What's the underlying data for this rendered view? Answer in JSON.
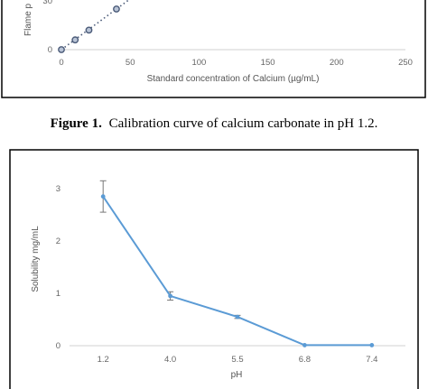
{
  "chart_data": [
    {
      "type": "scatter",
      "xlabel": "Standard concentration of Calcium (µg/mL)",
      "ylabel": "Flame p",
      "x_ticks": [
        "0",
        "50",
        "100",
        "150",
        "200",
        "250"
      ],
      "y_ticks": [
        "0",
        "30"
      ],
      "xlim": [
        0,
        250
      ],
      "ylim": [
        0,
        30
      ],
      "grid": false,
      "series": [
        {
          "x": [
            0,
            10,
            20,
            40
          ],
          "y": [
            0,
            6,
            12,
            25
          ],
          "color": "#4a5a78",
          "trendline": "dotted"
        }
      ]
    },
    {
      "type": "line",
      "xlabel": "pH",
      "ylabel": "Solubility mg/mL",
      "categories": [
        "1.2",
        "4.0",
        "5.5",
        "6.8",
        "7.4"
      ],
      "y_ticks": [
        "0",
        "1",
        "2",
        "3"
      ],
      "ylim": [
        0,
        3.5
      ],
      "grid": false,
      "series": [
        {
          "values": [
            2.85,
            0.95,
            0.55,
            0.01,
            0.01
          ],
          "error": [
            0.3,
            0.08,
            0.03,
            0,
            0
          ],
          "color": "#5b9bd5"
        }
      ]
    }
  ],
  "captions": {
    "figure1_label": "Figure 1.",
    "figure1_text": "Calibration curve of calcium carbonate in pH 1.2."
  }
}
